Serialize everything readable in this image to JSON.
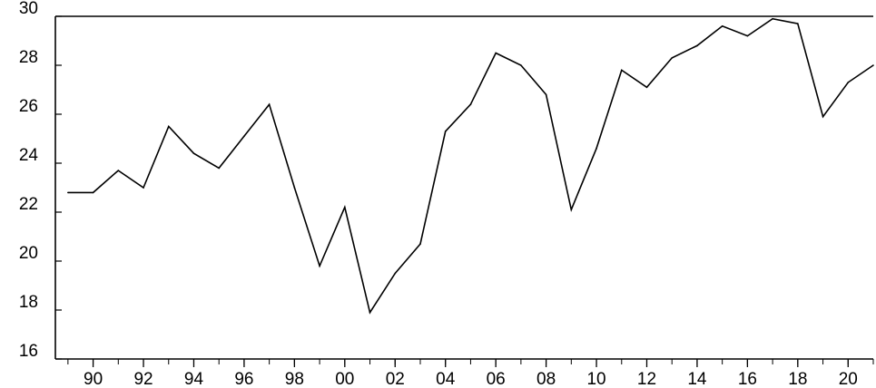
{
  "chart_data": {
    "type": "line",
    "title": "",
    "xlabel": "",
    "ylabel": "",
    "ylim": [
      16,
      30
    ],
    "xlim": [
      1988.5,
      2021
    ],
    "grid": false,
    "colors": {
      "line": "#000000",
      "axis": "#000000",
      "background": "#ffffff"
    },
    "y_ticks": [
      16,
      18,
      20,
      22,
      24,
      26,
      28,
      30
    ],
    "y_tick_labels": [
      "16",
      "18",
      "20",
      "22",
      "24",
      "26",
      "28",
      "30"
    ],
    "x_tick_years": [
      1990,
      1992,
      1994,
      1996,
      1998,
      2000,
      2002,
      2004,
      2006,
      2008,
      2010,
      2012,
      2014,
      2016,
      2018,
      2020
    ],
    "x_tick_labels": [
      "90",
      "92",
      "94",
      "96",
      "98",
      "00",
      "02",
      "04",
      "06",
      "08",
      "10",
      "12",
      "14",
      "16",
      "18",
      "20"
    ],
    "series": [
      {
        "x": [
          1989,
          1990,
          1991,
          1992,
          1993,
          1994,
          1995,
          1996,
          1997,
          1998,
          1999,
          2000,
          2001,
          2002,
          2003,
          2004,
          2005,
          2006,
          2007,
          2008,
          2009,
          2010,
          2011,
          2012,
          2013,
          2014,
          2015,
          2016,
          2017,
          2018,
          2019,
          2020,
          2021
        ],
        "values": [
          22.8,
          22.8,
          23.7,
          23.0,
          25.5,
          24.4,
          23.8,
          25.1,
          26.4,
          23.0,
          19.8,
          22.2,
          17.9,
          19.5,
          20.7,
          25.3,
          26.4,
          28.5,
          28.0,
          26.8,
          22.1,
          24.6,
          27.8,
          27.1,
          28.3,
          28.8,
          29.6,
          29.2,
          29.9,
          29.7,
          25.9,
          27.3,
          28.0
        ]
      }
    ]
  }
}
